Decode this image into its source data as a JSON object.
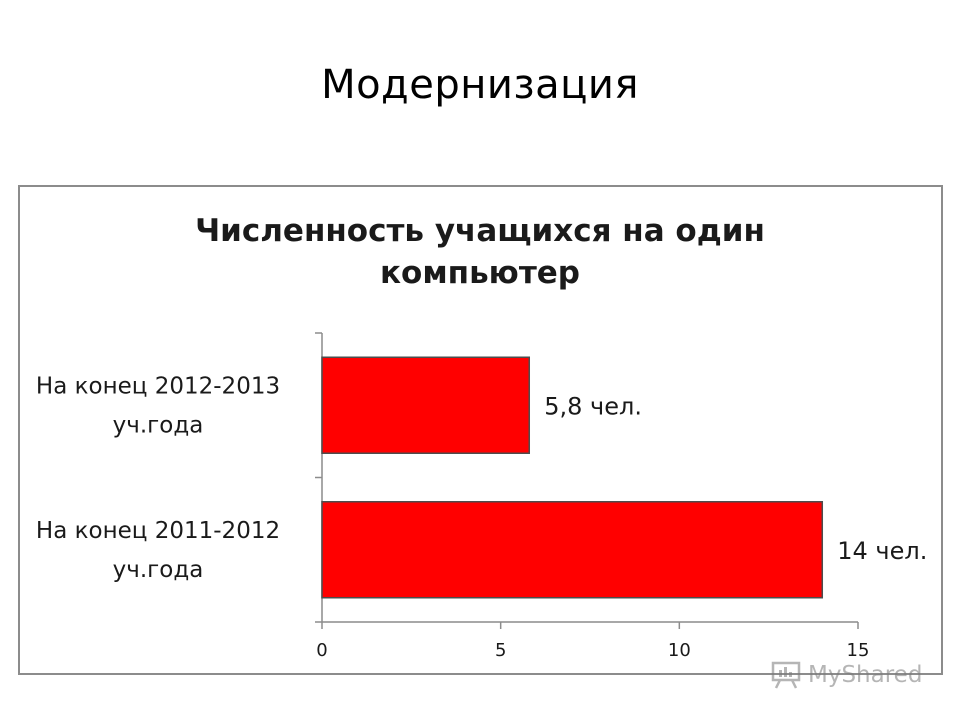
{
  "slide": {
    "title": "Модернизация"
  },
  "chart_data": {
    "type": "bar",
    "orientation": "horizontal",
    "title": "Численность учащихся на один компьютер",
    "title_lines": [
      "Численность учащихся на один",
      "компьютер"
    ],
    "categories": [
      {
        "lines": [
          "На конец 2012-2013",
          "уч.года"
        ]
      },
      {
        "lines": [
          "На конец 2011-2012",
          "уч.года"
        ]
      }
    ],
    "values": [
      5.8,
      14
    ],
    "data_labels": [
      "5,8 чел.",
      "14 чел."
    ],
    "xlim": [
      0,
      15
    ],
    "x_ticks": [
      0,
      5,
      10,
      15
    ],
    "x_tick_labels": [
      "0",
      "5",
      "10",
      "15"
    ],
    "xlabel": "",
    "ylabel": "",
    "grid": false,
    "legend": "none",
    "bar_color": "#ff0000",
    "bar_border_color": "#4d4d4d"
  },
  "watermark": {
    "text": "MyShared",
    "icon": "presentation-board-icon"
  }
}
